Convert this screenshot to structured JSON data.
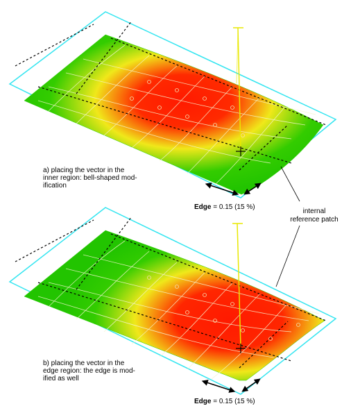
{
  "panel_a": {
    "caption_lines": [
      "a) placing the vector in the",
      "inner region: bell-shaped mod-",
      "ification"
    ],
    "edge_key": "Edge",
    "edge_value": "= 0.15 (15 %)"
  },
  "panel_b": {
    "caption_lines": [
      "b) placing the vector in the",
      "edge region: the edge is mod-",
      "ified as well"
    ],
    "edge_key": "Edge",
    "edge_value": "= 0.15 (15 %)"
  },
  "reference_label_lines": [
    "internal",
    "reference patch"
  ],
  "colors": {
    "frame": "#33e5f0",
    "surface_low": "#22cc00",
    "surface_mid": "#f0e81a",
    "surface_high": "#ff1a00",
    "vector": "#e8e800",
    "dashed_line": "#000000"
  }
}
